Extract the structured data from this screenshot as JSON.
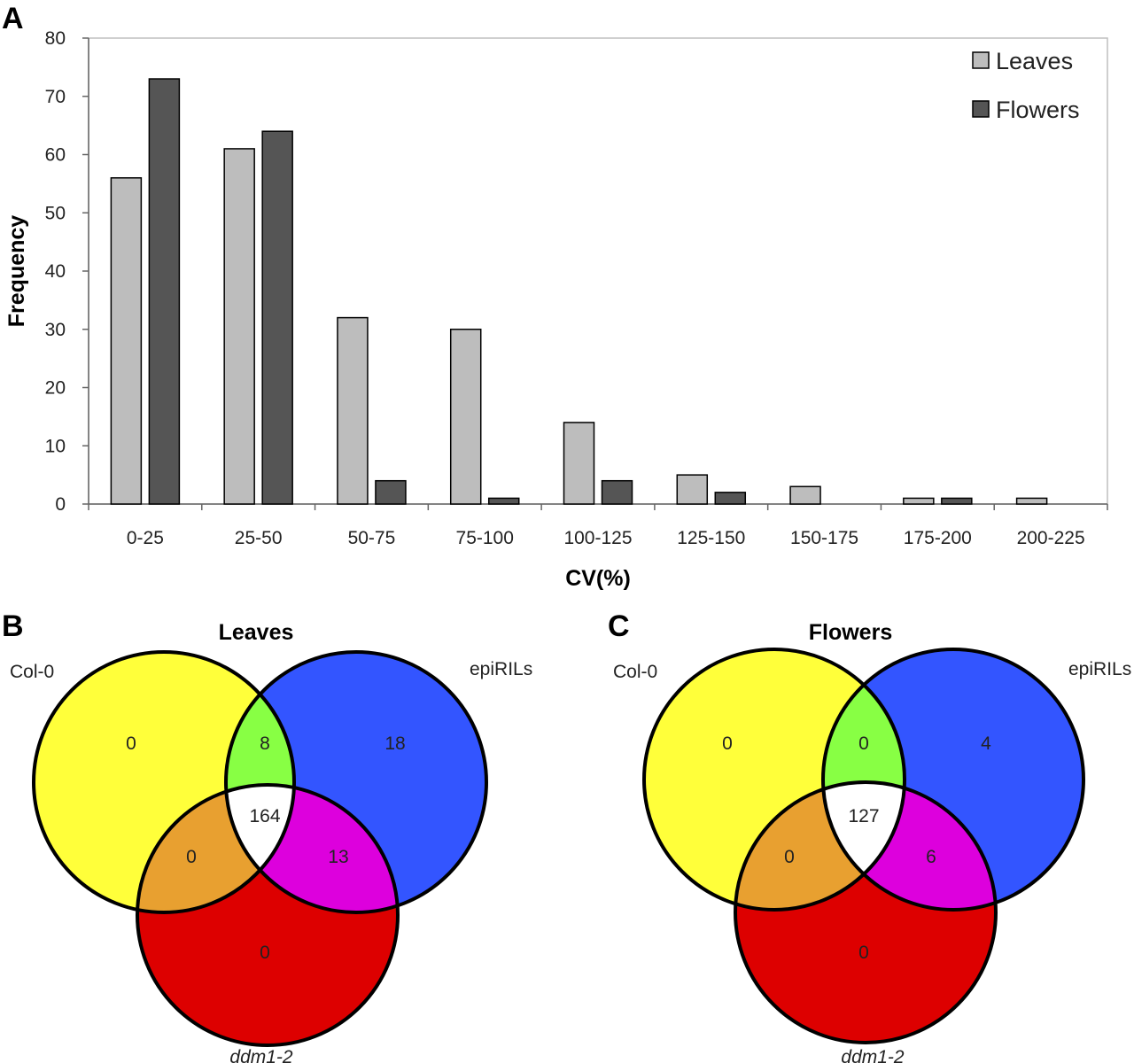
{
  "panels": {
    "a": "A",
    "b": "B",
    "c": "C"
  },
  "chart_data": [
    {
      "type": "bar",
      "categories": [
        "0-25",
        "25-50",
        "50-75",
        "75-100",
        "100-125",
        "125-150",
        "150-175",
        "175-200",
        "200-225"
      ],
      "series": [
        {
          "name": "Leaves",
          "values": [
            56,
            61,
            32,
            30,
            14,
            5,
            3,
            1,
            1
          ],
          "color": "#bdbdbd"
        },
        {
          "name": "Flowers",
          "values": [
            73,
            64,
            4,
            1,
            4,
            2,
            0,
            1,
            0
          ],
          "color": "#555555"
        }
      ],
      "title": "",
      "xlabel": "CV(%)",
      "ylabel": "Frequency",
      "ylim": [
        0,
        80
      ],
      "yticks": [
        0,
        10,
        20,
        30,
        40,
        50,
        60,
        70,
        80
      ],
      "grid": false,
      "legend_position": "top-right"
    },
    {
      "type": "venn",
      "title": "Leaves",
      "sets": [
        "Col-0",
        "epiRILs",
        "ddm1-2"
      ],
      "regions": {
        "col0_only": 0,
        "epirils_only": 18,
        "ddm12_only": 0,
        "col0_epirils": 8,
        "col0_ddm12": 0,
        "epirils_ddm12": 13,
        "all": 164
      }
    },
    {
      "type": "venn",
      "title": "Flowers",
      "sets": [
        "Col-0",
        "epiRILs",
        "ddm1-2"
      ],
      "regions": {
        "col0_only": 0,
        "epirils_only": 4,
        "ddm12_only": 0,
        "col0_epirils": 0,
        "col0_ddm12": 0,
        "epirils_ddm12": 6,
        "all": 127
      }
    }
  ],
  "venn_colors": {
    "col0": "#ffff3a",
    "epirils": "#3355ff",
    "ddm12": "#dd0000",
    "col0_epirils": "#88ff44",
    "col0_ddm12": "#e8a030",
    "epirils_ddm12": "#dd00dd",
    "all": "#ffffff"
  }
}
